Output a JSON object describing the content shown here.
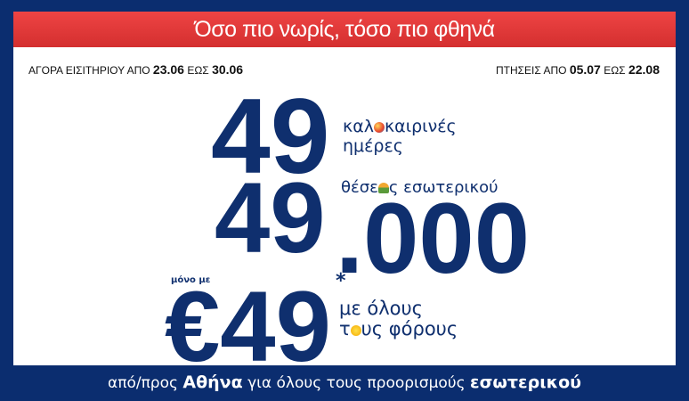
{
  "header": {
    "title": "Όσο πιο νωρίς, τόσο πιο φθηνά"
  },
  "purchase": {
    "label": "ΑΓΟΡΑ ΕΙΣΙΤΗΡΙΟΥ ΑΠΟ",
    "from": "23.06",
    "to_label": "ΕΩΣ",
    "to": "30.06"
  },
  "flights": {
    "label": "ΠΤΗΣΕΙΣ ΑΠΟ",
    "from": "05.07",
    "to_label": "ΕΩΣ",
    "to": "22.08"
  },
  "days": {
    "number": "49",
    "line1_a": "καλ",
    "line1_b": "καιρινές",
    "line2": "ημέρες",
    "icon": "beach-ball-icon"
  },
  "seats": {
    "number_a": "49",
    "number_b": ".000",
    "label_a": "θέσε",
    "label_b": "ς εσωτερικού",
    "icon": "umbrella-icon"
  },
  "price": {
    "prefix": "μόνο με",
    "amount": "€49",
    "asterisk": "*",
    "line1": "με όλους",
    "line2_a": "τ",
    "line2_b": "υς φόρους",
    "icon": "sun-icon"
  },
  "footer": {
    "a": "από/προς ",
    "city": "Αθήνα",
    "b": " για όλους τους προορισμούς ",
    "c": "εσωτερικού"
  },
  "colors": {
    "navy": "#0b2d6f",
    "red": "#e03a3a"
  }
}
